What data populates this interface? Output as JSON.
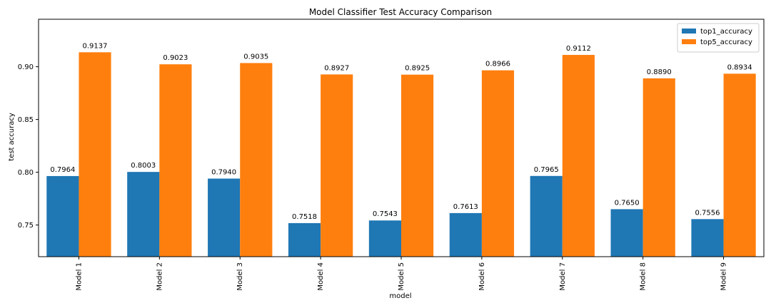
{
  "chart_data": {
    "type": "bar",
    "title": "Model Classifier Test Accuracy Comparison",
    "xlabel": "model",
    "ylabel": "test accuracy",
    "categories": [
      "Model 1",
      "Model 2",
      "Model 3",
      "Model 4",
      "Model 5",
      "Model 6",
      "Model 7",
      "Model 8",
      "Model 9"
    ],
    "series": [
      {
        "name": "top1_accuracy",
        "color": "#1f77b4",
        "values": [
          0.7964,
          0.8003,
          0.794,
          0.7518,
          0.7543,
          0.7613,
          0.7965,
          0.765,
          0.7556
        ],
        "labels": [
          "0.7964",
          "0.8003",
          "0.7940",
          "0.7518",
          "0.7543",
          "0.7613",
          "0.7965",
          "0.7650",
          "0.7556"
        ]
      },
      {
        "name": "top5_accuracy",
        "color": "#ff7f0e",
        "values": [
          0.9137,
          0.9023,
          0.9035,
          0.8927,
          0.8925,
          0.8966,
          0.9112,
          0.889,
          0.8934
        ],
        "labels": [
          "0.9137",
          "0.9023",
          "0.9035",
          "0.8927",
          "0.8925",
          "0.8966",
          "0.9112",
          "0.8890",
          "0.8934"
        ]
      }
    ],
    "ylim": [
      0.72,
      0.945
    ],
    "yticks": [
      0.75,
      0.8,
      0.85,
      0.9
    ],
    "ytick_labels": [
      "0.75",
      "0.80",
      "0.85",
      "0.90"
    ],
    "grid": false,
    "legend_position": "top-right"
  }
}
